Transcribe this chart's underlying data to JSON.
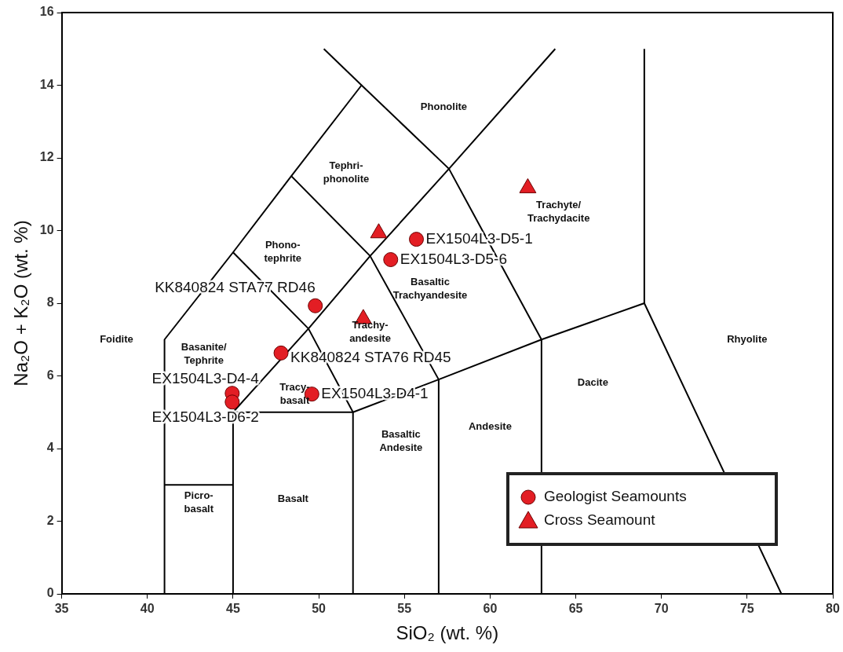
{
  "chart_data": {
    "type": "scatter",
    "xlabel": "SiO₂ (wt. %)",
    "ylabel": "Na₂O + K₂O (wt. %)",
    "xlim": [
      35,
      80
    ],
    "xticks": [
      35,
      40,
      45,
      50,
      55,
      60,
      65,
      70,
      75,
      80
    ],
    "ylim": [
      0,
      16
    ],
    "yticks": [
      0,
      2,
      4,
      6,
      8,
      10,
      12,
      14,
      16
    ],
    "legend": "bottom right",
    "series": [
      {
        "name": "Geologist Seamounts",
        "color": "#e31e24",
        "marker": "circle",
        "x": [
          55.7,
          54.2,
          49.8,
          47.8,
          49.6,
          44.95,
          44.95
        ],
        "values": [
          9.76,
          9.2,
          7.93,
          6.63,
          5.5,
          5.52,
          5.28
        ]
      },
      {
        "name": "Cross Seamount",
        "color": "#e31e24",
        "marker": "triangle",
        "x": [
          53.5,
          52.6,
          62.2
        ],
        "values": [
          9.93,
          7.57,
          11.17
        ]
      },
      {
        "type": "line",
        "color": "#000000",
        "marker": "none",
        "x": [
          41,
          41,
          45,
          48.4,
          52.5,
          57.6,
          63,
          63
        ],
        "values": [
          0,
          7,
          9.4,
          11.5,
          14,
          11.7,
          7,
          0
        ]
      },
      {
        "type": "line",
        "color": "#000000",
        "marker": "none",
        "x": [
          41,
          45
        ],
        "values": [
          3,
          3
        ]
      },
      {
        "type": "line",
        "color": "#000000",
        "marker": "none",
        "x": [
          45,
          45,
          52,
          52
        ],
        "values": [
          0,
          5,
          5,
          0
        ]
      },
      {
        "type": "line",
        "color": "#000000",
        "marker": "none",
        "x": [
          45,
          49.4,
          53,
          57.6,
          63.8
        ],
        "values": [
          5,
          7.3,
          9.3,
          11.7,
          15
        ]
      },
      {
        "type": "line",
        "color": "#000000",
        "marker": "none",
        "x": [
          45,
          49.4,
          52
        ],
        "values": [
          9.4,
          7.3,
          5
        ]
      },
      {
        "type": "line",
        "color": "#000000",
        "marker": "none",
        "x": [
          48.4,
          53,
          57,
          57
        ],
        "values": [
          11.5,
          9.3,
          5.9,
          0
        ]
      },
      {
        "type": "line",
        "color": "#000000",
        "marker": "none",
        "x": [
          52,
          57,
          63,
          69,
          77
        ],
        "values": [
          5,
          5.9,
          7,
          8,
          0
        ]
      },
      {
        "type": "line",
        "color": "#000000",
        "marker": "none",
        "x": [
          69,
          69
        ],
        "values": [
          8,
          15
        ]
      },
      {
        "type": "line",
        "color": "#000000",
        "marker": "none",
        "x": [
          52.5,
          50.3
        ],
        "values": [
          14,
          15
        ]
      }
    ],
    "annotations": [
      {
        "text": "EX1504L3-D5-1",
        "x": 55.7,
        "y": 9.76
      },
      {
        "text": "EX1504L3-D5-6",
        "x": 54.2,
        "y": 9.2
      },
      {
        "text": "KK840824 STA77 RD46",
        "x": 49.8,
        "y": 7.93
      },
      {
        "text": "KK840824 STA76 RD45",
        "x": 47.8,
        "y": 6.63
      },
      {
        "text": "EX1504L3-D4-1",
        "x": 49.6,
        "y": 5.5
      },
      {
        "text": "EX1504L3-D4-4",
        "x": 44.95,
        "y": 5.52
      },
      {
        "text": "EX1504L3-D6-2",
        "x": 44.95,
        "y": 5.28
      },
      "Foidite",
      "Picro-\nbasalt",
      "Basalt",
      "Basaltic\nAndesite",
      "Andesite",
      "Dacite",
      "Rhyolite",
      "Trachyte/\nTrachydacite",
      "Basaltic\nTrachyandesite",
      "Trachy-\nandesite",
      "Tracy-\nbasalt",
      "Basanite/\nTephrite",
      "Phono-\ntephrite",
      "Tephri-\nphonolite",
      "Phonolite"
    ]
  }
}
